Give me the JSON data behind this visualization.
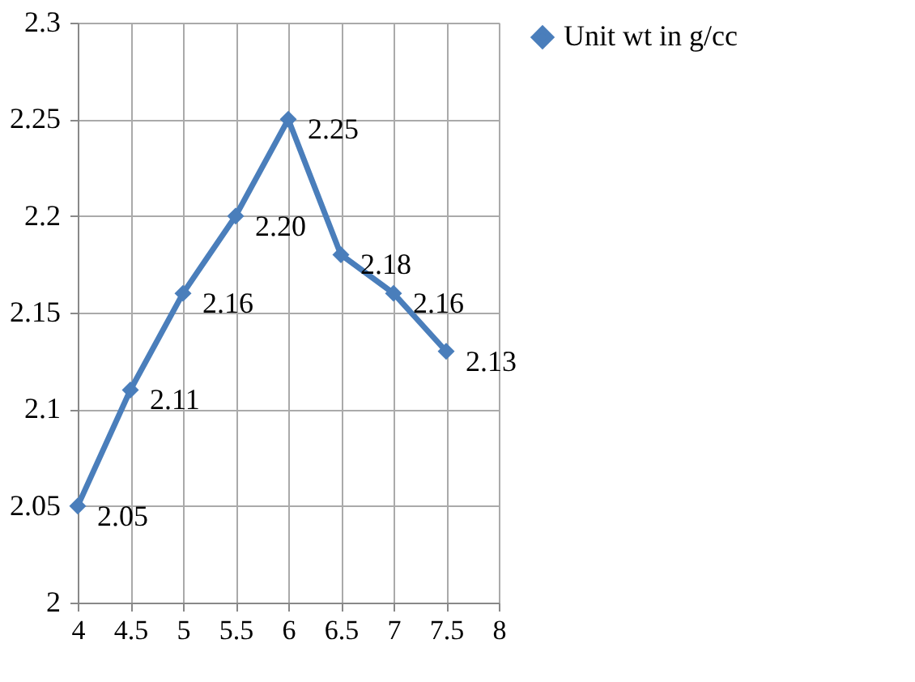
{
  "chart_data": {
    "type": "line",
    "x": [
      4,
      4.5,
      5,
      5.5,
      6,
      6.5,
      7,
      7.5
    ],
    "series": [
      {
        "name": "Unit wt in g/cc",
        "color": "#4a7ebb",
        "values": [
          2.05,
          2.11,
          2.16,
          2.2,
          2.25,
          2.18,
          2.16,
          2.13
        ],
        "value_labels": [
          "2.05",
          "2.11",
          "2.16",
          "2.20",
          "2.25",
          "2.18",
          "2.16",
          "2.13"
        ]
      }
    ],
    "xlim": [
      4,
      8
    ],
    "xticks": [
      4,
      4.5,
      5,
      5.5,
      6,
      6.5,
      7,
      7.5,
      8
    ],
    "ylim": [
      2,
      2.3
    ],
    "yticks": [
      2,
      2.05,
      2.1,
      2.15,
      2.2,
      2.25,
      2.3
    ],
    "grid": true,
    "legend": "right",
    "marker": "diamond",
    "line_style": "solid"
  }
}
